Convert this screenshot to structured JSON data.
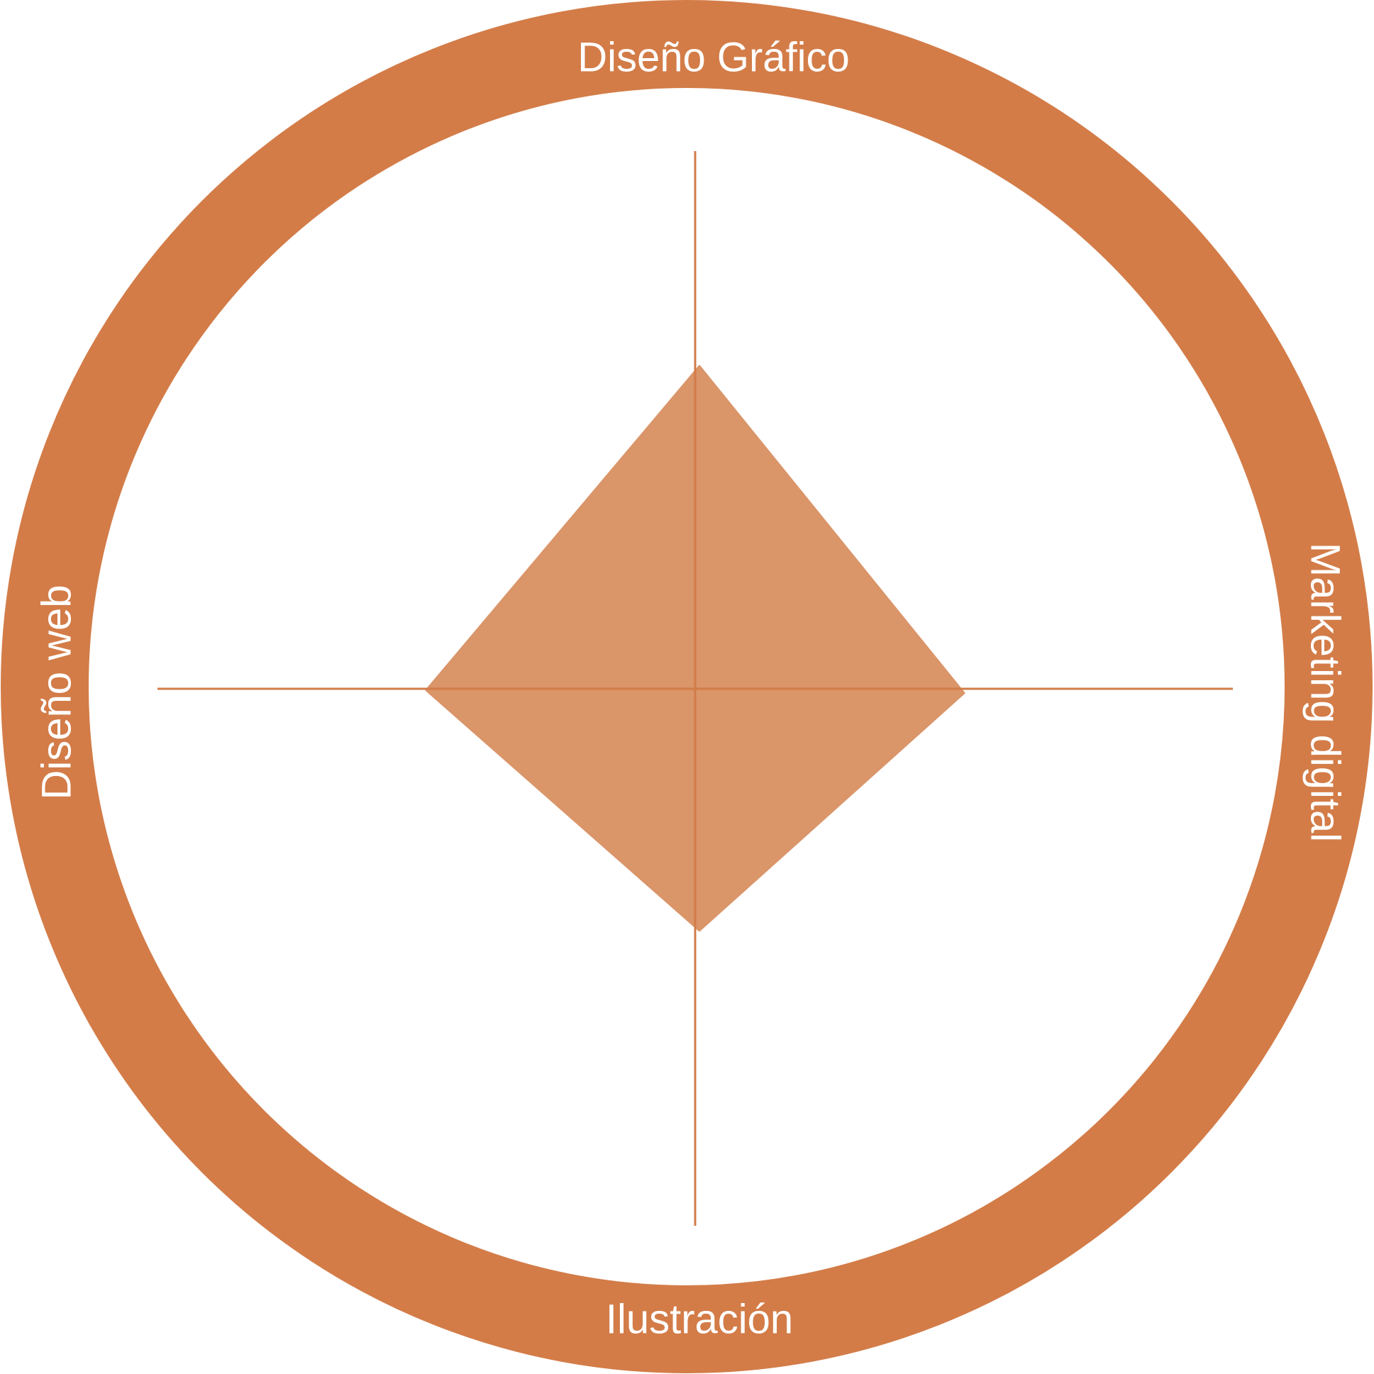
{
  "colors": {
    "ring": "#D37C48",
    "axis": "#D37C48",
    "shape_fill": "#DA9569",
    "label": "#FFFFFF",
    "background": "#FFFFFF"
  },
  "labels": {
    "top": "Diseño Gráfico",
    "right": "Marketing digital",
    "bottom": "Ilustración",
    "left": "Diseño web"
  },
  "chart_data": {
    "type": "radar",
    "axes": [
      "Diseño Gráfico",
      "Marketing digital",
      "Ilustración",
      "Diseño web"
    ],
    "scale": [
      0,
      1
    ],
    "values": [
      0.6,
      0.5,
      0.45,
      0.5
    ]
  }
}
